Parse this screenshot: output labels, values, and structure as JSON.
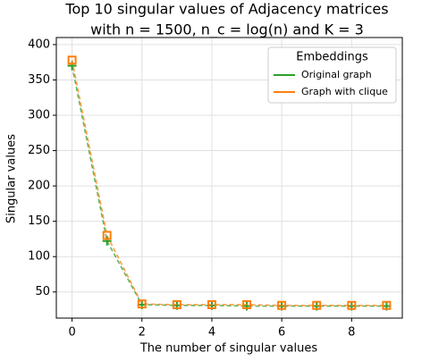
{
  "chart_data": {
    "type": "line",
    "title": "Top 10 singular values of Adjacency matrices",
    "subtitle": "with n = 1500, n_c = log(n) and K = 3",
    "x_label": "The number of singular values",
    "y_label": "Singular values",
    "x": [
      0,
      1,
      2,
      3,
      4,
      5,
      6,
      7,
      8,
      9
    ],
    "series": [
      {
        "name": "Original graph",
        "color": "#2ca02c",
        "values": [
          370,
          122,
          32,
          31,
          31,
          30,
          30,
          30,
          30,
          30
        ]
      },
      {
        "name": "Graph with clique",
        "color": "#ff7f0e",
        "values": [
          378,
          130,
          33,
          32,
          32,
          32,
          31,
          31,
          31,
          31
        ]
      }
    ],
    "xlim": [
      -0.45,
      9.45
    ],
    "xticks": [
      0,
      2,
      4,
      6,
      8
    ],
    "ylim": [
      13,
      410
    ],
    "yticks": [
      50,
      100,
      150,
      200,
      250,
      300,
      350,
      400
    ],
    "grid": true,
    "legend_title": "Embeddings",
    "legend_position": "upper-right"
  }
}
